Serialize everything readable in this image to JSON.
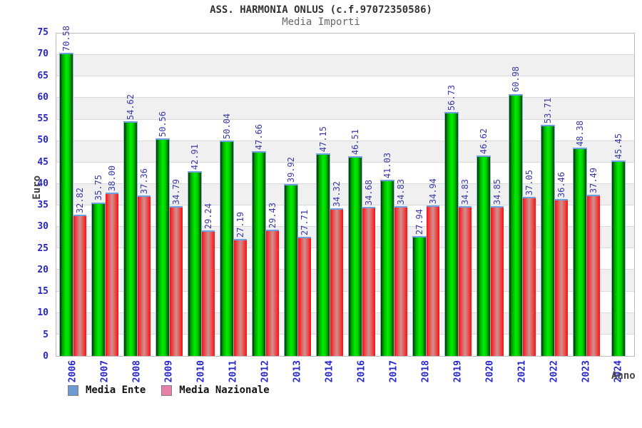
{
  "chart_data": {
    "type": "bar",
    "title": "ASS. HARMONIA ONLUS (c.f.97072350586)",
    "subtitle": "Media Importi",
    "xlabel": "Anno",
    "ylabel": "Euro",
    "ylim": [
      0,
      75
    ],
    "ytick_step": 5,
    "grid": true,
    "legend_position": "bottom-left",
    "value_labels_rotated": true,
    "categories": [
      "2006",
      "2007",
      "2008",
      "2009",
      "2010",
      "2011",
      "2012",
      "2013",
      "2014",
      "2016",
      "2017",
      "2018",
      "2019",
      "2020",
      "2021",
      "2022",
      "2023",
      "2024"
    ],
    "series": [
      {
        "name": "Media Ente",
        "legend_swatch_color": "#6b9bd2",
        "bar_color": "#00cc00",
        "values": [
          70.58,
          35.75,
          54.62,
          50.56,
          42.91,
          50.04,
          47.66,
          39.92,
          47.15,
          46.51,
          41.03,
          27.94,
          56.73,
          46.62,
          60.98,
          53.71,
          48.38,
          45.45
        ]
      },
      {
        "name": "Media Nazionale",
        "legend_swatch_color": "#e87fa8",
        "bar_color": "#ff2222",
        "values": [
          32.82,
          38.0,
          37.36,
          34.79,
          29.24,
          27.19,
          29.43,
          27.71,
          34.32,
          34.68,
          34.83,
          34.94,
          34.83,
          34.85,
          37.05,
          36.46,
          37.49,
          null
        ]
      }
    ]
  },
  "colors": {
    "axis_text": "#2626cc",
    "value_label_text": "#3a3aa8",
    "title_text": "#333333",
    "band_stripe": "#f0f0f0",
    "bar_cap": "#6f9fdf"
  }
}
